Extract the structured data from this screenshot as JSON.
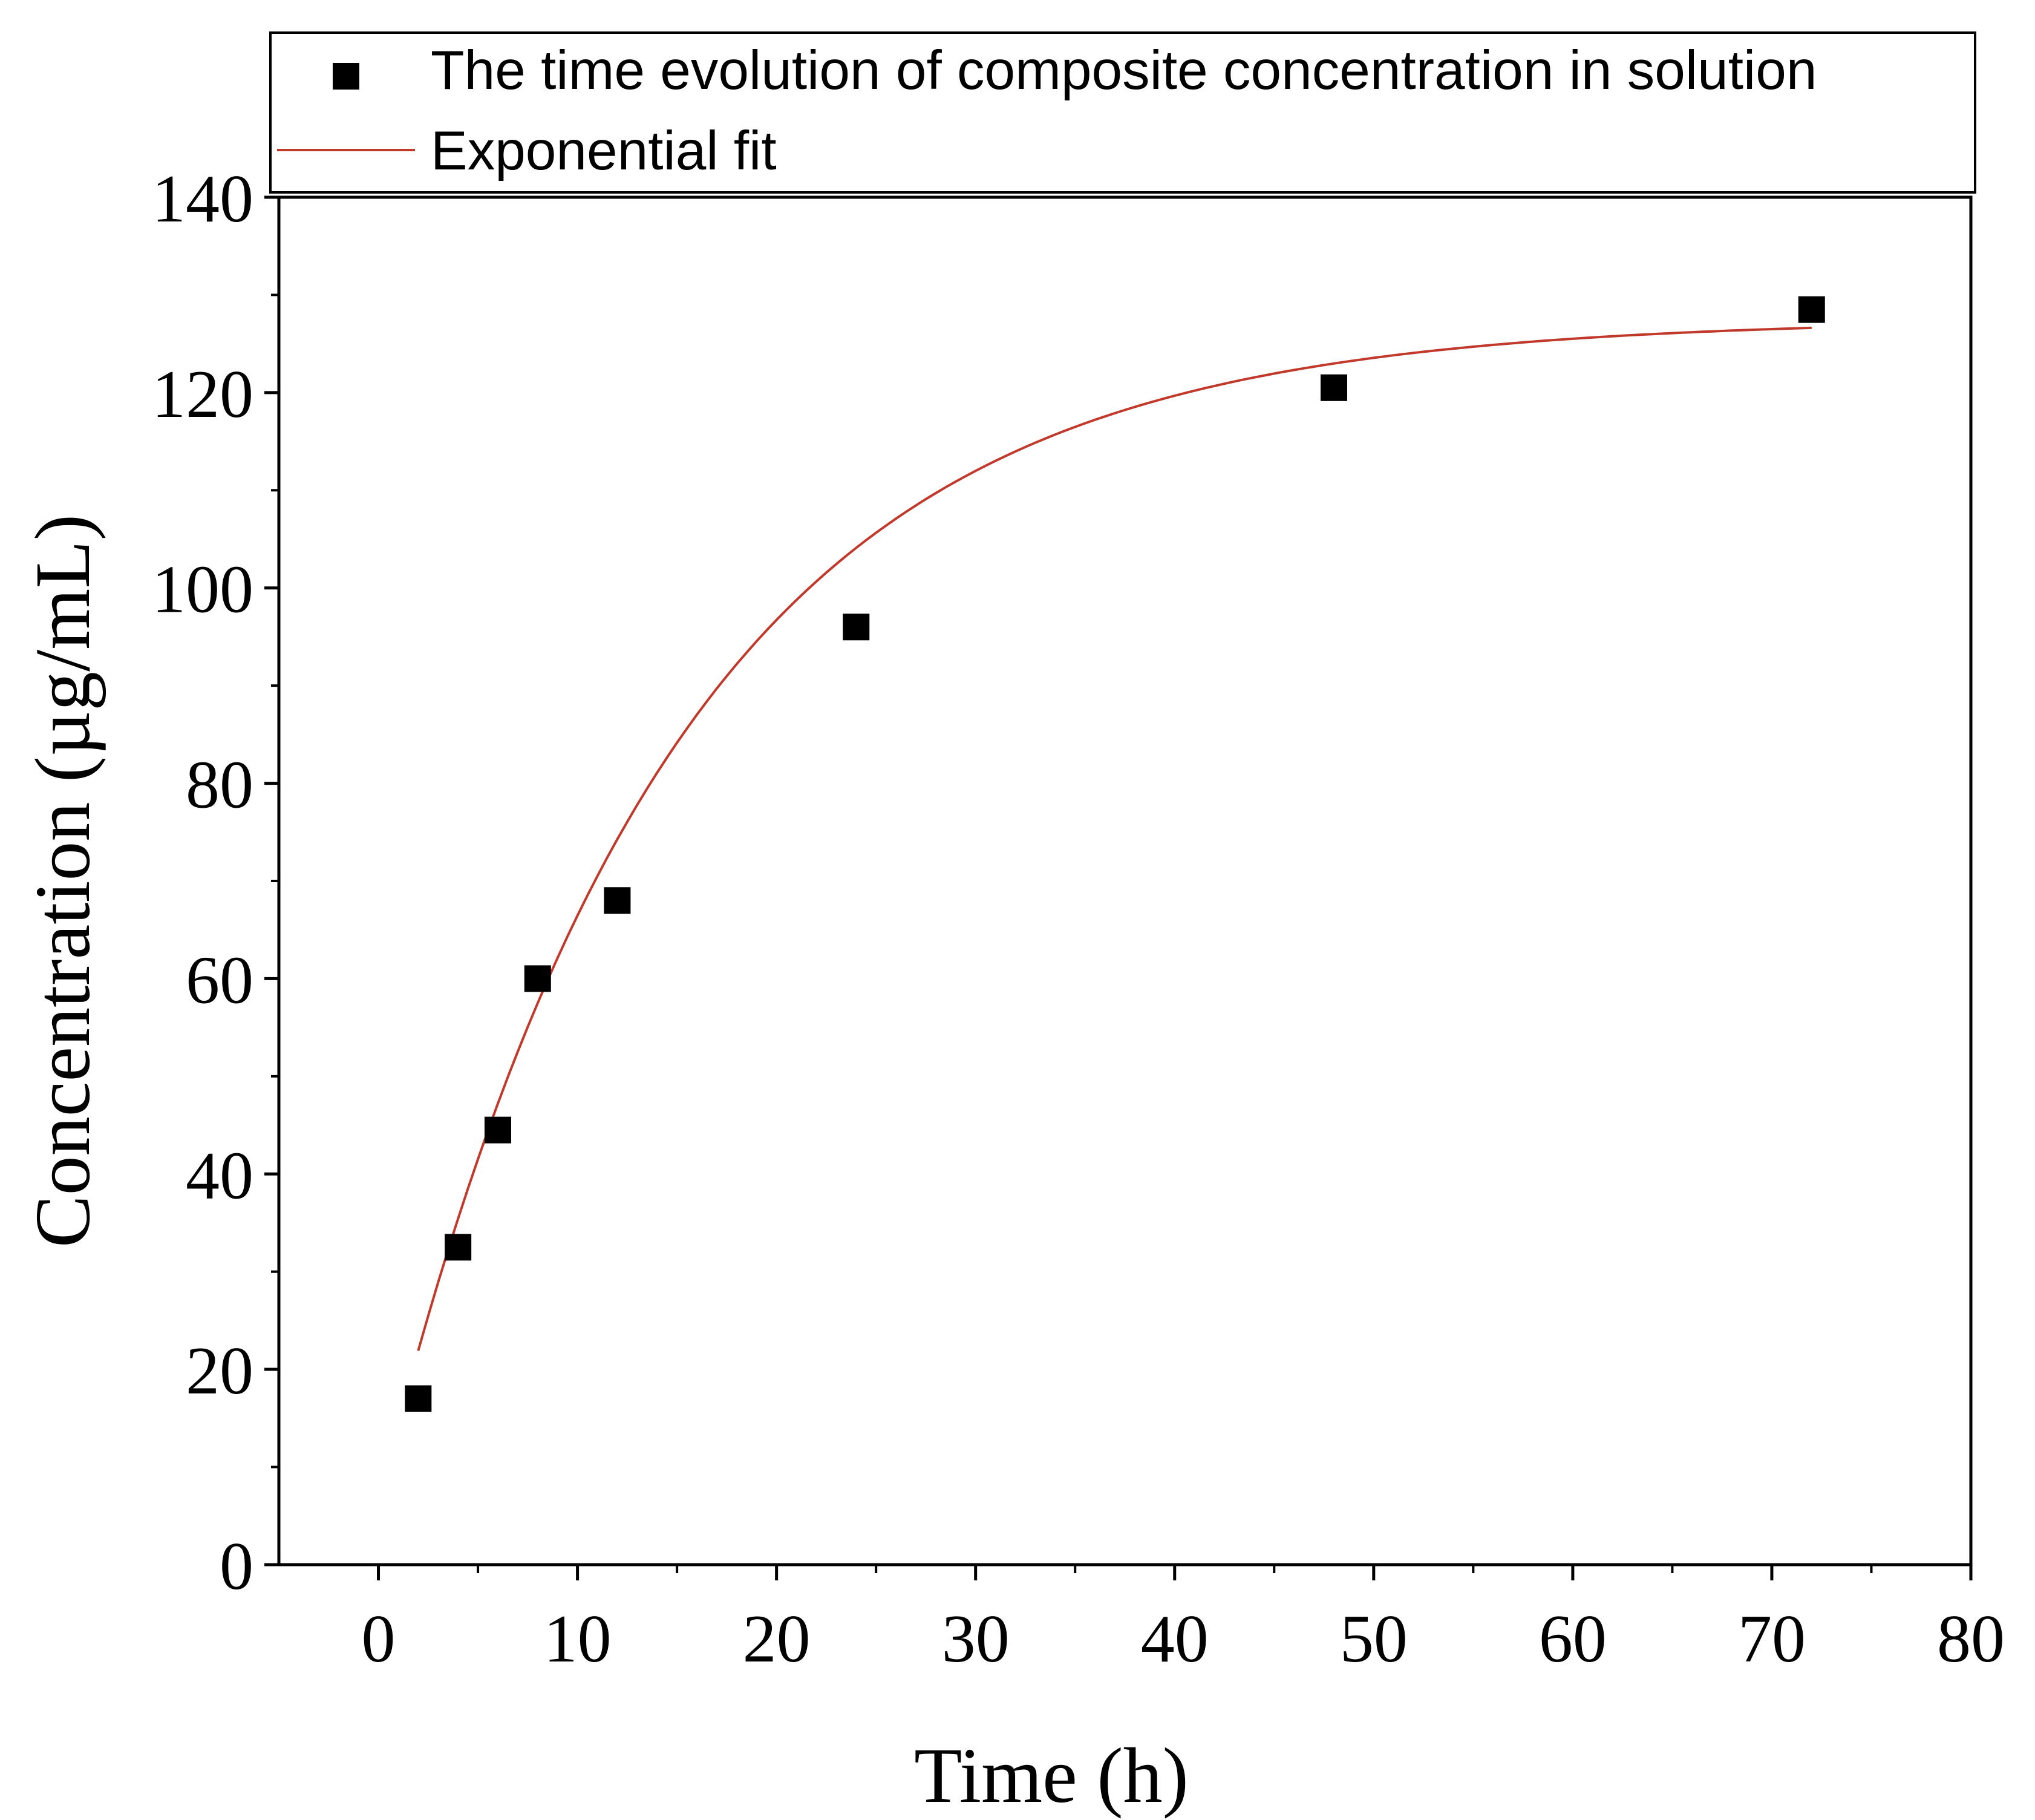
{
  "chart_data": {
    "type": "scatter",
    "title": "",
    "xlabel": "Time (h)",
    "ylabel": "Concentration (µg/mL)",
    "xlim": [
      -5,
      80
    ],
    "ylim": [
      0,
      140
    ],
    "xticks": [
      0,
      10,
      20,
      30,
      40,
      50,
      60,
      70,
      80
    ],
    "yticks": [
      0,
      20,
      40,
      60,
      80,
      100,
      120,
      140
    ],
    "x_minor_step": 5,
    "y_minor_step": 10,
    "series": [
      {
        "name": "The time evolution of composite concentration in solution",
        "kind": "scatter",
        "marker": "square",
        "color": "#000000",
        "x": [
          2,
          4,
          6,
          8,
          12,
          24,
          48,
          72
        ],
        "y": [
          17,
          32.5,
          44.5,
          60,
          68,
          96,
          120.5,
          128.5
        ]
      },
      {
        "name": "Exponential fit",
        "kind": "line",
        "color": "#c0392b",
        "model": "y = A - B*exp(-x/t)",
        "params": {
          "A": 127.5,
          "B": 121.1,
          "t": 14.6
        },
        "x_range": [
          2,
          72
        ]
      }
    ],
    "legend": {
      "position": "top",
      "entries": [
        "The time evolution of composite concentration in solution",
        "Exponential fit"
      ]
    },
    "grid": false
  }
}
